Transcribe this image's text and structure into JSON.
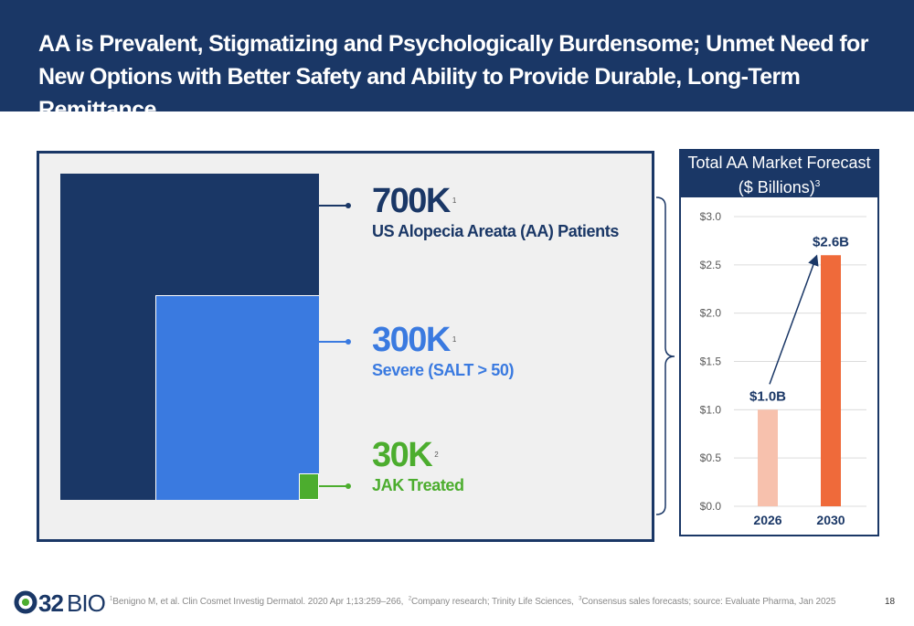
{
  "title": "AA is Prevalent, Stigmatizing and Psychologically Burdensome; Unmet Need for New Options with Better Safety and Ability to Provide Durable, Long-Term Remittance",
  "stats": [
    {
      "value": "700K",
      "ref": "1",
      "label": "US Alopecia Areata (AA) Patients",
      "color": "#1a3766"
    },
    {
      "value": "300K",
      "ref": "1",
      "label": "Severe (SALT > 50)",
      "color": "#3a7ae0"
    },
    {
      "value": "30K",
      "ref": "2",
      "label": "JAK Treated",
      "color": "#4cad2e"
    }
  ],
  "chart_data": {
    "type": "bar",
    "title": "Total AA Market Forecast",
    "subtitle": "($ Billions)",
    "subtitle_ref": "3",
    "categories": [
      "2026",
      "2030"
    ],
    "values": [
      1.0,
      2.6
    ],
    "data_labels": [
      "$1.0B",
      "$2.6B"
    ],
    "bar_colors": [
      "#f7c1ad",
      "#ef6a3a"
    ],
    "ylim": [
      0,
      3.0
    ],
    "yticks": [
      "$0.0",
      "$0.5",
      "$1.0",
      "$1.5",
      "$2.0",
      "$2.5",
      "$3.0"
    ],
    "ytick_values": [
      0,
      0.5,
      1.0,
      1.5,
      2.0,
      2.5,
      3.0
    ],
    "grid": true,
    "annotation": "arrow from 2026 to 2030"
  },
  "footer": {
    "logo": "Q32 BIO",
    "refs": [
      {
        "num": "1",
        "text": "Benigno M, et al. Clin Cosmet Investig Dermatol. 2020 Apr 1;13:259–266,"
      },
      {
        "num": "2",
        "text": "Company research; Trinity Life Sciences,"
      },
      {
        "num": "3",
        "text": "Consensus sales forecasts; source: Evaluate Pharma, Jan 2025"
      }
    ],
    "page": "18"
  },
  "colors": {
    "navy": "#1a3766",
    "blue": "#3a7ae0",
    "green": "#4cad2e",
    "panel": "#f0f0f0"
  }
}
